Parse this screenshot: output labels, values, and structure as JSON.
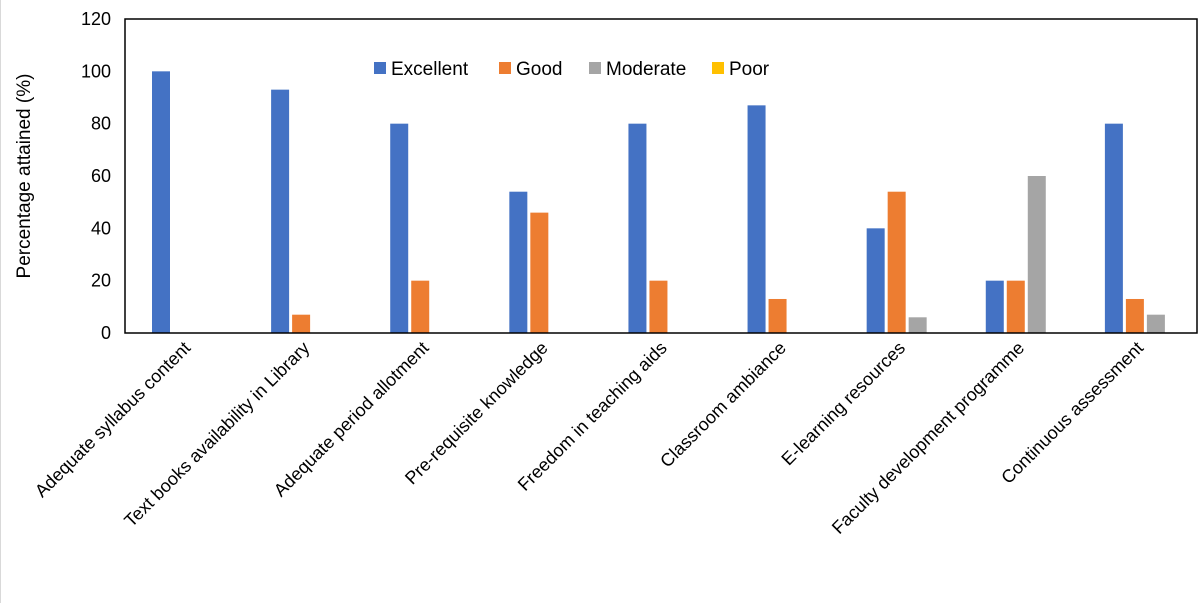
{
  "chart_data": {
    "type": "bar",
    "title": "",
    "xlabel": "",
    "ylabel": "Percentage attained (%)",
    "ylim": [
      0,
      120
    ],
    "yticks": [
      0,
      20,
      40,
      60,
      80,
      100,
      120
    ],
    "grid": false,
    "legend_position": "top-center",
    "categories": [
      "Adequate syllabus content",
      "Text books availability in Library",
      "Adequate period allotment",
      "Pre-requisite knowledge",
      "Freedom in teaching aids",
      "Classroom ambiance",
      "E-learning resources",
      "Faculty development programme",
      "Continuous assessment"
    ],
    "series": [
      {
        "name": "Excellent",
        "color": "#4472C4",
        "values": [
          100,
          93,
          80,
          54,
          80,
          87,
          40,
          20,
          80
        ]
      },
      {
        "name": "Good",
        "color": "#ED7D31",
        "values": [
          0,
          7,
          20,
          46,
          20,
          13,
          54,
          20,
          13
        ]
      },
      {
        "name": "Moderate",
        "color": "#A5A5A5",
        "values": [
          0,
          0,
          0,
          0,
          0,
          0,
          6,
          60,
          7
        ]
      },
      {
        "name": "Poor",
        "color": "#FFC000",
        "values": [
          0,
          0,
          0,
          0,
          0,
          0,
          0,
          0,
          0
        ]
      }
    ]
  }
}
